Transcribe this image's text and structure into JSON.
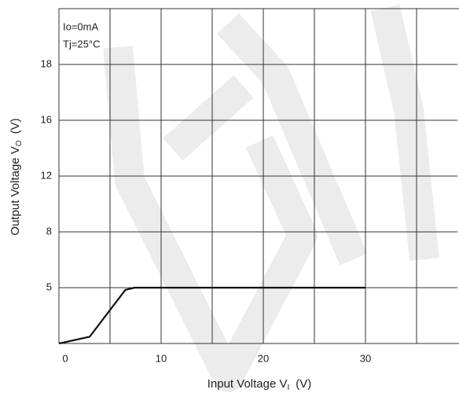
{
  "chart_data": {
    "type": "line",
    "annotations": [
      "Io=0mA",
      "Tj=25°C"
    ],
    "x_label": {
      "main": "Input Voltage  V",
      "sub": "I",
      "unit": "(V)"
    },
    "y_label": {
      "main": "Output Voltage  V",
      "sub": "O",
      "unit": "(V)"
    },
    "x": [
      0,
      3,
      6.5,
      7.4,
      30
    ],
    "series": [
      {
        "color": "#111111",
        "values": [
          0,
          0.6,
          4.8,
          5,
          5
        ]
      }
    ],
    "xlim": [
      0,
      39
    ],
    "xticks": [
      0,
      10,
      20,
      30
    ],
    "xgrid": [
      5,
      15,
      25,
      35
    ],
    "ylim": [
      0,
      20
    ],
    "yticks": [
      5,
      8,
      12,
      16,
      18
    ],
    "grid": true
  }
}
